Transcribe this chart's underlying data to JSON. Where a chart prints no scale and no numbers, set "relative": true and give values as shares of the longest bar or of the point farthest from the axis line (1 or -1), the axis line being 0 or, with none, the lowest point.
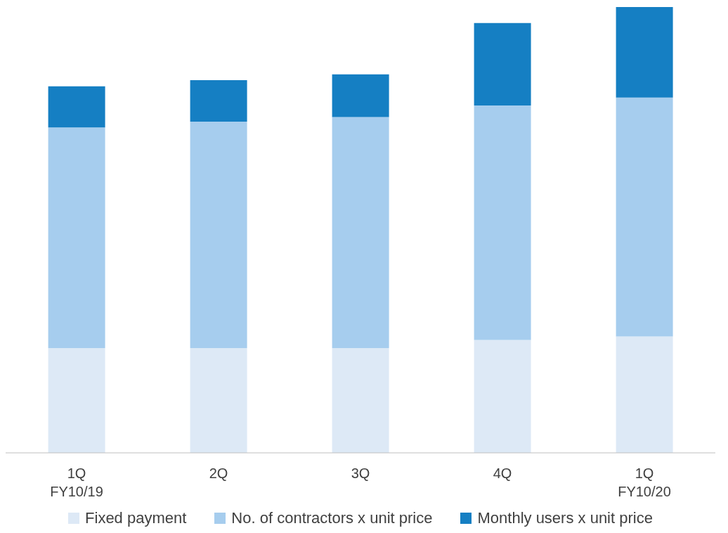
{
  "chart_data": {
    "type": "bar",
    "stacked": true,
    "relative": true,
    "legend": "bottom",
    "grid": false,
    "categories": [
      "1Q\nFY10/19",
      "2Q",
      "3Q",
      "4Q",
      "1Q\nFY10/20"
    ],
    "series": [
      {
        "name": "Fixed payment",
        "color": "#dde9f6",
        "values": [
          0.235,
          0.235,
          0.235,
          0.253,
          0.261
        ]
      },
      {
        "name": "No. of contractors x unit price",
        "color": "#a6cdee",
        "values": [
          0.495,
          0.508,
          0.518,
          0.526,
          0.536
        ]
      },
      {
        "name": "Monthly users x unit price",
        "color": "#157fc3",
        "values": [
          0.092,
          0.093,
          0.096,
          0.185,
          0.203
        ]
      }
    ]
  }
}
